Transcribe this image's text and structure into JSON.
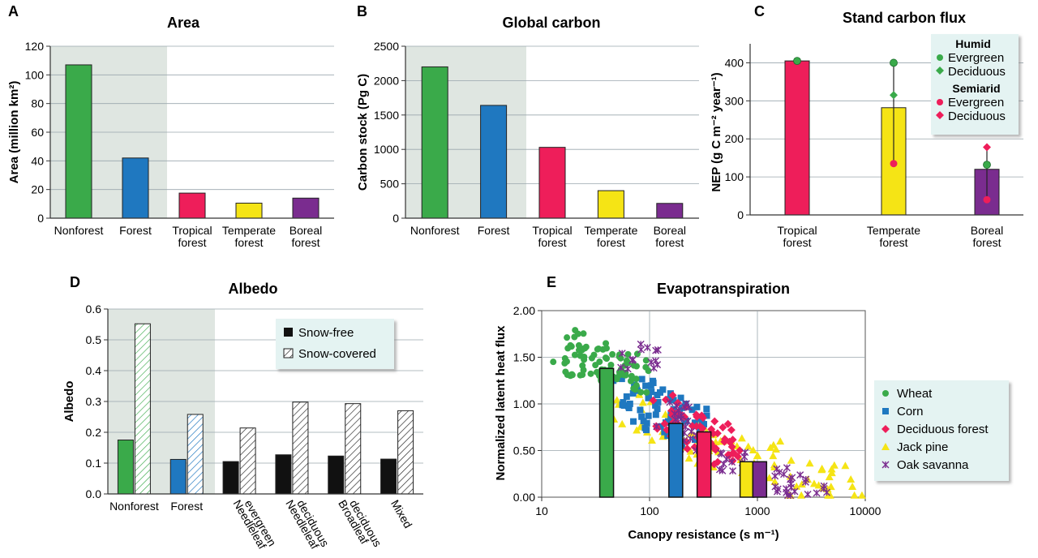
{
  "colors": {
    "nonforest": "#3aaa4a",
    "forest": "#1f78c0",
    "tropical": "#ee1e5a",
    "temperate": "#f5e415",
    "boreal": "#7a2c8f",
    "shade": "#dfe6e1",
    "legend_bg": "#e4f3f2",
    "grid": "#9aa6ad"
  },
  "chart_data": [
    {
      "panel": "A",
      "type": "bar",
      "title": "Area",
      "ylabel": "Area (million km²)",
      "ylim": [
        0,
        120
      ],
      "yticks": [
        "0",
        "20",
        "40",
        "60",
        "80",
        "100",
        "120"
      ],
      "categories": [
        [
          "Nonforest"
        ],
        [
          "Forest"
        ],
        [
          "Tropical",
          "forest"
        ],
        [
          "Temperate",
          "forest"
        ],
        [
          "Boreal",
          "forest"
        ]
      ],
      "values": [
        107,
        42,
        17.5,
        10.5,
        14
      ]
    },
    {
      "panel": "B",
      "type": "bar",
      "title": "Global carbon",
      "ylabel": "Carbon stock (Pg C)",
      "ylim": [
        0,
        2500
      ],
      "yticks": [
        "0",
        "500",
        "1000",
        "1500",
        "2000",
        "2500"
      ],
      "categories": [
        [
          "Nonforest"
        ],
        [
          "Forest"
        ],
        [
          "Tropical",
          "forest"
        ],
        [
          "Temperate",
          "forest"
        ],
        [
          "Boreal",
          "forest"
        ]
      ],
      "values": [
        2200,
        1640,
        1030,
        400,
        215
      ]
    },
    {
      "panel": "C",
      "type": "bar",
      "title": "Stand carbon flux",
      "ylabel": "NEP (g C m⁻² year⁻¹)",
      "ylim": [
        0,
        450
      ],
      "yticks": [
        "0",
        "100",
        "200",
        "300",
        "400"
      ],
      "categories": [
        [
          "Tropical",
          "forest"
        ],
        [
          "Temperate",
          "forest"
        ],
        [
          "Boreal",
          "forest"
        ]
      ],
      "values": [
        405,
        282,
        120
      ],
      "error_ranges": [
        null,
        [
          135,
          400
        ],
        [
          40,
          178
        ]
      ],
      "points": {
        "humid_evergreen": [
          405,
          400,
          132
        ],
        "humid_deciduous": [
          null,
          315,
          null
        ],
        "semiarid_evergreen": [
          null,
          135,
          40
        ],
        "semiarid_deciduous": [
          null,
          null,
          178
        ]
      },
      "legend": {
        "group1": "Humid",
        "group2": "Semiarid",
        "evergreen": "Evergreen",
        "deciduous": "Deciduous"
      }
    },
    {
      "panel": "D",
      "type": "bar",
      "title": "Albedo",
      "ylabel": "Albedo",
      "ylim": [
        0,
        0.6
      ],
      "yticks": [
        "0.0",
        "0.1",
        "0.2",
        "0.3",
        "0.4",
        "0.5",
        "0.6"
      ],
      "categories": [
        [
          "Nonforest"
        ],
        [
          "Forest"
        ],
        [
          "Needleleaf",
          "evergreen"
        ],
        [
          "Needleleaf",
          "deciduous"
        ],
        [
          "Broadleaf",
          "deciduous"
        ],
        [
          "Mixed"
        ]
      ],
      "series": [
        {
          "name": "Snow-free",
          "values": [
            0.175,
            0.112,
            0.105,
            0.127,
            0.123,
            0.113
          ]
        },
        {
          "name": "Snow-covered",
          "values": [
            0.552,
            0.258,
            0.214,
            0.298,
            0.293,
            0.27
          ]
        }
      ]
    },
    {
      "panel": "E",
      "type": "scatter",
      "title": "Evapotranspiration",
      "xlabel": "Canopy resistance (s m⁻¹)",
      "ylabel": "Normalized latent heat flux",
      "xscale": "log",
      "xlim": [
        10,
        10000
      ],
      "ylim": [
        0,
        2
      ],
      "xticks": [
        "10",
        "100",
        "1000",
        "10000"
      ],
      "yticks": [
        "0.00",
        "0.50",
        "1.00",
        "1.50",
        "2.00"
      ],
      "series": [
        {
          "name": "Wheat",
          "marker": "circle",
          "bar": {
            "x": 40,
            "y": 1.38
          },
          "centers": [
            [
              18,
              1.5
            ],
            [
              23,
              1.6
            ],
            [
              30,
              1.45
            ],
            [
              40,
              1.4
            ],
            [
              55,
              1.35
            ],
            [
              70,
              1.3
            ]
          ],
          "spread": [
            0.3,
            0.2
          ]
        },
        {
          "name": "Corn",
          "marker": "square",
          "bar": {
            "x": 175,
            "y": 0.79
          },
          "centers": [
            [
              60,
              1.05
            ],
            [
              90,
              1.0
            ],
            [
              120,
              0.95
            ],
            [
              170,
              0.85
            ],
            [
              230,
              0.8
            ]
          ],
          "spread": [
            0.35,
            0.25
          ]
        },
        {
          "name": "Deciduous forest",
          "marker": "diamond",
          "bar": {
            "x": 320,
            "y": 0.7
          },
          "centers": [
            [
              150,
              0.9
            ],
            [
              220,
              0.8
            ],
            [
              300,
              0.7
            ],
            [
              400,
              0.6
            ],
            [
              500,
              0.55
            ]
          ],
          "spread": [
            0.3,
            0.2
          ]
        },
        {
          "name": "Jack pine",
          "marker": "triangle",
          "bar": {
            "x": 800,
            "y": 0.38
          },
          "centers": [
            [
              70,
              0.85
            ],
            [
              150,
              0.7
            ],
            [
              300,
              0.6
            ],
            [
              600,
              0.45
            ],
            [
              1200,
              0.35
            ],
            [
              3000,
              0.2
            ],
            [
              6000,
              0.1
            ]
          ],
          "spread": [
            0.45,
            0.25
          ]
        },
        {
          "name": "Oak savanna",
          "marker": "cross",
          "bar": {
            "x": 1050,
            "y": 0.38
          },
          "centers": [
            [
              80,
              1.5
            ],
            [
              150,
              0.9
            ],
            [
              300,
              0.6
            ],
            [
              700,
              0.35
            ],
            [
              1500,
              0.2
            ],
            [
              3000,
              0.12
            ]
          ],
          "spread": [
            0.4,
            0.15
          ]
        }
      ]
    }
  ]
}
